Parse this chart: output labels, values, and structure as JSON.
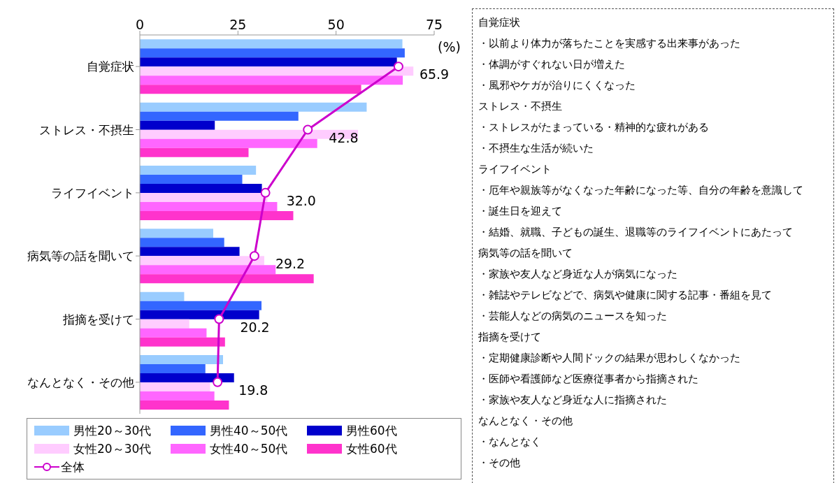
{
  "chart_data": {
    "type": "bar",
    "orientation": "horizontal",
    "xlabel": "(%)",
    "categories": [
      "自覚症状",
      "ストレス・不摂生",
      "ライフイベント",
      "病気等の話を聞いて",
      "指摘を受けて",
      "なんとなく・その他"
    ],
    "xlim": [
      0,
      75
    ],
    "xticks": [
      0,
      25,
      50,
      75
    ],
    "legend": "bottom",
    "series": [
      {
        "name": "男性20～30代",
        "color": "#99ccff",
        "values": [
          66.9,
          57.8,
          29.6,
          18.7,
          11.3,
          21.2
        ]
      },
      {
        "name": "男性40～50代",
        "color": "#3366ff",
        "values": [
          67.5,
          40.4,
          26.1,
          21.5,
          31.0,
          16.7
        ]
      },
      {
        "name": "男性60代",
        "color": "#0000cc",
        "values": [
          65.5,
          19.1,
          31.1,
          25.4,
          30.4,
          24.0
        ]
      },
      {
        "name": "女性20～30代",
        "color": "#ffccff",
        "values": [
          69.7,
          55.6,
          32.5,
          31.7,
          12.6,
          17.9
        ]
      },
      {
        "name": "女性40～50代",
        "color": "#ff66ff",
        "values": [
          67.0,
          45.2,
          35.0,
          34.6,
          17.0,
          19.0
        ]
      },
      {
        "name": "女性60代",
        "color": "#ff33cc",
        "values": [
          56.4,
          27.7,
          39.1,
          44.3,
          21.7,
          22.7
        ]
      },
      {
        "name": "全体",
        "type": "line",
        "color": "#cc00cc",
        "marker": "circle",
        "values": [
          65.9,
          42.8,
          32.0,
          29.2,
          20.2,
          19.8
        ],
        "value_labels": [
          "65.9",
          "42.8",
          "32.0",
          "29.2",
          "20.2",
          "19.8"
        ]
      }
    ],
    "annotations": [
      "自覚症状",
      "・以前より体力が落ちたことを実感する出来事があった",
      "・体調がすぐれない日が増えた",
      "・風邪やケガが治りにくくなった",
      "ストレス・不摂生",
      "・ストレスがたまっている・精神的な疲れがある",
      "・不摂生な生活が続いた",
      "ライフイベント",
      "・厄年や親族等がなくなった年齢になった等、自分の年齢を意識して",
      "・誕生日を迎えて",
      "・結婚、就職、子どもの誕生、退職等のライフイベントにあたって",
      "病気等の話を聞いて",
      "・家族や友人など身近な人が病気になった",
      "・雑誌やテレビなどで、病気や健康に関する記事・番組を見て",
      "・芸能人などの病気のニュースを知った",
      "指摘を受けて",
      "・定期健康診断や人間ドックの結果が思わしくなかった",
      "・医師や看護師など医療従事者から指摘された",
      "・家族や友人など身近な人に指摘された",
      "なんとなく・その他",
      "・なんとなく",
      "・その他"
    ]
  }
}
